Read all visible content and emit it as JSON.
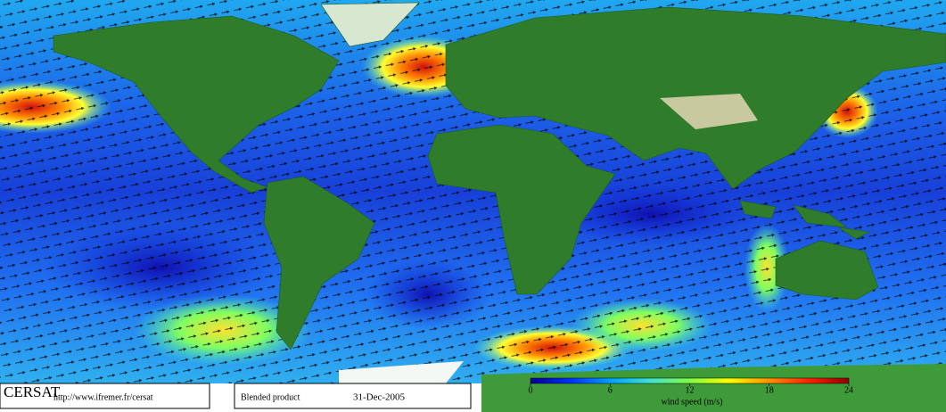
{
  "footer": {
    "logo": "CERSAT",
    "url": "http://www.ifremer.fr/cersat",
    "product": "Blended product",
    "date": "31-Dec-2005"
  },
  "colorbar": {
    "label": "wind speed (m/s)",
    "lim": [
      0,
      24
    ],
    "ticks": [
      0,
      6,
      12,
      18,
      24
    ],
    "colors": [
      "#000090",
      "#0030ff",
      "#00a0ff",
      "#40e0d0",
      "#80ff40",
      "#ffff00",
      "#ff9000",
      "#ff2000",
      "#900000"
    ]
  }
}
